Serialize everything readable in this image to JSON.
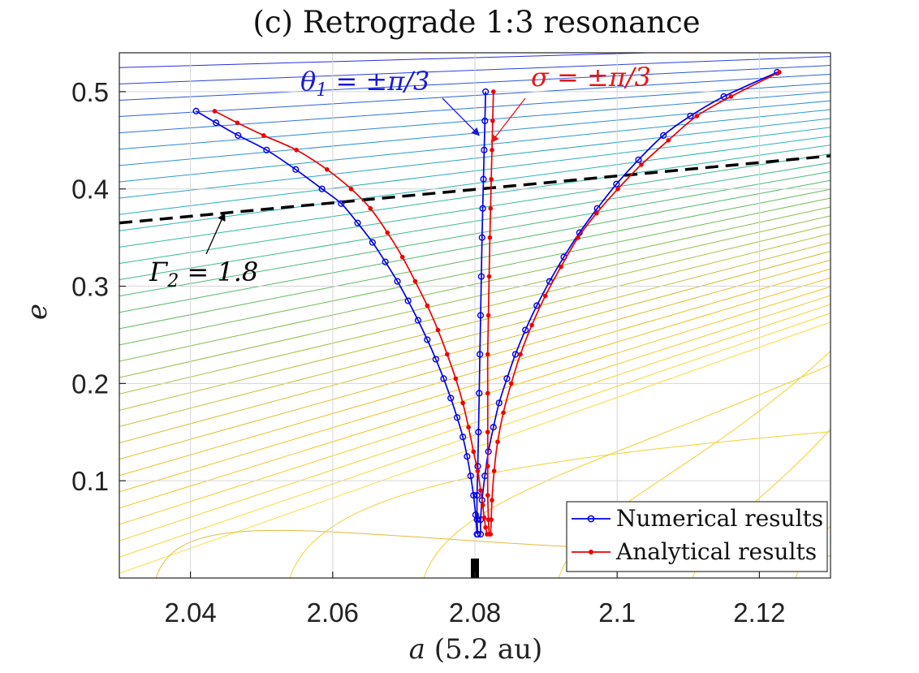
{
  "chart_data": {
    "type": "line",
    "title": "(c) Retrograde 1:3 resonance",
    "xlabel": "a (5.2 au)",
    "ylabel": "e",
    "xlim": [
      2.03,
      2.13
    ],
    "ylim": [
      0,
      0.54
    ],
    "xticks": [
      2.04,
      2.06,
      2.08,
      2.1,
      2.12
    ],
    "xtick_labels": [
      "2.04",
      "2.06",
      "2.08",
      "2.1",
      "2.12"
    ],
    "yticks": [
      0.1,
      0.2,
      0.3,
      0.4,
      0.5
    ],
    "ytick_labels": [
      "0.1",
      "0.2",
      "0.3",
      "0.4",
      "0.5"
    ],
    "grid": true,
    "legend_position": "bottom-right",
    "series": [
      {
        "name": "Numerical results",
        "color": "#0000ee",
        "marker": "open-circle",
        "branches": [
          {
            "label": "left",
            "x": [
              2.0408,
              2.0436,
              2.0467,
              2.0507,
              2.0548,
              2.0585,
              2.0612,
              2.0635,
              2.0656,
              2.0674,
              2.0691,
              2.0706,
              2.072,
              2.0733,
              2.0745,
              2.0756,
              2.0766,
              2.0775,
              2.0783,
              2.0789,
              2.0794,
              2.0798,
              2.0801,
              2.0803
            ],
            "y": [
              0.48,
              0.468,
              0.455,
              0.44,
              0.42,
              0.4,
              0.385,
              0.365,
              0.345,
              0.325,
              0.305,
              0.285,
              0.265,
              0.245,
              0.225,
              0.205,
              0.185,
              0.165,
              0.145,
              0.125,
              0.105,
              0.085,
              0.065,
              0.045
            ]
          },
          {
            "label": "center",
            "x": [
              2.0815,
              2.0814,
              2.0813,
              2.0812,
              2.0811,
              2.081,
              2.0809,
              2.0808,
              2.0807,
              2.0806,
              2.0805,
              2.0804,
              2.0803,
              2.0803,
              2.0804
            ],
            "y": [
              0.5,
              0.47,
              0.44,
              0.41,
              0.38,
              0.35,
              0.31,
              0.27,
              0.23,
              0.19,
              0.15,
              0.115,
              0.085,
              0.06,
              0.045
            ]
          },
          {
            "label": "right",
            "x": [
              2.1225,
              2.115,
              2.1103,
              2.1065,
              2.103,
              2.0999,
              2.0972,
              2.0947,
              2.0925,
              2.0905,
              2.0887,
              2.0871,
              2.0857,
              2.0845,
              2.0834,
              2.0826,
              2.0819,
              2.0814,
              2.081,
              2.0808,
              2.0808
            ],
            "y": [
              0.52,
              0.495,
              0.475,
              0.455,
              0.43,
              0.405,
              0.38,
              0.355,
              0.33,
              0.305,
              0.28,
              0.255,
              0.23,
              0.205,
              0.18,
              0.155,
              0.13,
              0.105,
              0.08,
              0.06,
              0.045
            ]
          }
        ]
      },
      {
        "name": "Analytical results",
        "color": "#ee0000",
        "marker": "filled-dot",
        "branches": [
          {
            "label": "left",
            "x": [
              2.0434,
              2.0466,
              2.0503,
              2.0549,
              2.0592,
              2.0626,
              2.0653,
              2.0677,
              2.0698,
              2.0716,
              2.0733,
              2.0748,
              2.0761,
              2.0773,
              2.0783,
              2.0791,
              2.0798,
              2.0804,
              2.0808,
              2.0811,
              2.0813,
              2.0815,
              2.0817
            ],
            "y": [
              0.48,
              0.468,
              0.455,
              0.44,
              0.42,
              0.4,
              0.38,
              0.355,
              0.33,
              0.305,
              0.28,
              0.255,
              0.23,
              0.205,
              0.18,
              0.155,
              0.13,
              0.11,
              0.09,
              0.075,
              0.062,
              0.052,
              0.045
            ]
          },
          {
            "label": "center",
            "x": [
              2.0826,
              2.0825,
              2.0824,
              2.0823,
              2.0822,
              2.0821,
              2.082,
              2.0819,
              2.0818,
              2.0818,
              2.0818,
              2.0818,
              2.0818,
              2.0819,
              2.082
            ],
            "y": [
              0.5,
              0.47,
              0.44,
              0.41,
              0.38,
              0.35,
              0.31,
              0.27,
              0.23,
              0.19,
              0.15,
              0.115,
              0.085,
              0.06,
              0.045
            ]
          },
          {
            "label": "right",
            "x": [
              2.1228,
              2.116,
              2.1112,
              2.1072,
              2.1034,
              2.1001,
              2.0971,
              2.0945,
              2.0921,
              2.0899,
              2.088,
              2.0864,
              2.0851,
              2.084,
              2.0832,
              2.0827,
              2.0824,
              2.0823,
              2.0822
            ],
            "y": [
              0.52,
              0.495,
              0.475,
              0.45,
              0.425,
              0.4,
              0.375,
              0.35,
              0.32,
              0.29,
              0.26,
              0.23,
              0.2,
              0.17,
              0.14,
              0.11,
              0.08,
              0.06,
              0.045
            ]
          }
        ]
      },
      {
        "name": "Gamma2 = 1.8 level",
        "color": "#000000",
        "style": "dashed",
        "x": [
          2.03,
          2.13
        ],
        "y": [
          0.365,
          0.434
        ]
      }
    ],
    "marker_bar": {
      "x": 2.08,
      "y": [
        0,
        0.02
      ]
    },
    "annotations": [
      {
        "text": "θ1 = ±π/3",
        "color": "#1010dd",
        "arrow_to": [
          2.0806,
          0.455
        ]
      },
      {
        "text": "σ = ±π/3",
        "color": "#ee1010",
        "arrow_to": [
          2.0823,
          0.448
        ]
      },
      {
        "text": "Γ2 = 1.8",
        "color": "#000000",
        "arrow_to": [
          2.0448,
          0.375
        ]
      }
    ],
    "legend": [
      "Numerical results",
      "Analytical results"
    ],
    "background": "contour lines of Gamma2 (blue at high e, green mid, yellow at low e)"
  }
}
